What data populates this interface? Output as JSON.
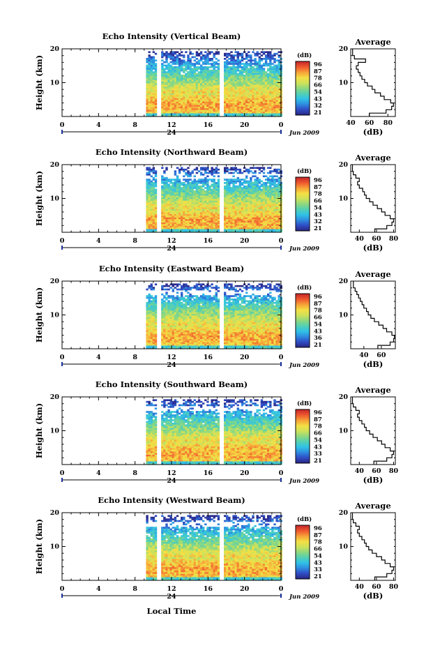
{
  "figure": {
    "x_axis_title": "Local Time",
    "x_ticks": [
      "0",
      "4",
      "8",
      "12",
      "16",
      "20",
      "0"
    ],
    "day_label": "24",
    "date_label": "Jun 2009",
    "y_axis_title": "Height (km)",
    "y_ticks": [
      "20",
      "10"
    ],
    "colorbar_unit": "(dB)",
    "avg_title": "Average",
    "avg_x_title": "(dB)"
  },
  "colors": {
    "scale": [
      "#2a2a8a",
      "#3050c8",
      "#2e8fe0",
      "#31c3e6",
      "#55d0b0",
      "#8fd87e",
      "#cfe25a",
      "#f4df44",
      "#f7a338",
      "#f05a2e",
      "#c82a2a"
    ]
  },
  "chart_data": [
    {
      "type": "heatmap",
      "title": "Echo Intensity (Vertical Beam)",
      "ylabel": "Height (km)",
      "xlabel": "Local Time",
      "xlim": [
        0,
        24
      ],
      "ylim": [
        0,
        20
      ],
      "data_start_hour": 9.2,
      "gaps_hours": [
        10.4,
        17.4
      ],
      "colorbar_ticks": [
        "96",
        "87",
        "78",
        "66",
        "54",
        "43",
        "32",
        "21"
      ],
      "avg_xticks": [
        "40",
        "60",
        "80"
      ],
      "avg_xlim": [
        40,
        88
      ],
      "avg_profile": [
        {
          "h": 1,
          "db": 60
        },
        {
          "h": 2,
          "db": 78
        },
        {
          "h": 3,
          "db": 84
        },
        {
          "h": 4,
          "db": 86
        },
        {
          "h": 5,
          "db": 83
        },
        {
          "h": 6,
          "db": 76
        },
        {
          "h": 7,
          "db": 72
        },
        {
          "h": 8,
          "db": 66
        },
        {
          "h": 9,
          "db": 63
        },
        {
          "h": 10,
          "db": 58
        },
        {
          "h": 11,
          "db": 55
        },
        {
          "h": 12,
          "db": 52
        },
        {
          "h": 13,
          "db": 50
        },
        {
          "h": 14,
          "db": 48
        },
        {
          "h": 15,
          "db": 46
        },
        {
          "h": 16,
          "db": 48
        },
        {
          "h": 17,
          "db": 56
        },
        {
          "h": 18,
          "db": 44
        },
        {
          "h": 19,
          "db": 42
        },
        {
          "h": 20,
          "db": 42
        }
      ]
    },
    {
      "type": "heatmap",
      "title": "Echo Intensity (Northward Beam)",
      "ylabel": "Height (km)",
      "xlabel": "Local Time",
      "xlim": [
        0,
        24
      ],
      "ylim": [
        0,
        20
      ],
      "data_start_hour": 9.2,
      "gaps_hours": [
        10.4,
        17.4
      ],
      "colorbar_ticks": [
        "96",
        "87",
        "78",
        "66",
        "54",
        "43",
        "32",
        "21"
      ],
      "avg_xticks": [
        "40",
        "60",
        "80"
      ],
      "avg_xlim": [
        30,
        82
      ],
      "avg_profile": [
        {
          "h": 1,
          "db": 58
        },
        {
          "h": 2,
          "db": 72
        },
        {
          "h": 3,
          "db": 78
        },
        {
          "h": 4,
          "db": 80
        },
        {
          "h": 5,
          "db": 76
        },
        {
          "h": 6,
          "db": 70
        },
        {
          "h": 7,
          "db": 66
        },
        {
          "h": 8,
          "db": 61
        },
        {
          "h": 9,
          "db": 56
        },
        {
          "h": 10,
          "db": 52
        },
        {
          "h": 11,
          "db": 48
        },
        {
          "h": 12,
          "db": 46
        },
        {
          "h": 13,
          "db": 44
        },
        {
          "h": 14,
          "db": 40
        },
        {
          "h": 15,
          "db": 38
        },
        {
          "h": 16,
          "db": 40
        },
        {
          "h": 17,
          "db": 36
        },
        {
          "h": 18,
          "db": 33
        },
        {
          "h": 19,
          "db": 32
        },
        {
          "h": 20,
          "db": 32
        }
      ]
    },
    {
      "type": "heatmap",
      "title": "Echo Intensity (Eastward Beam)",
      "ylabel": "Height (km)",
      "xlabel": "Local Time",
      "xlim": [
        0,
        24
      ],
      "ylim": [
        0,
        20
      ],
      "data_start_hour": 9.2,
      "gaps_hours": [
        10.4,
        17.4
      ],
      "colorbar_ticks": [
        "96",
        "87",
        "78",
        "66",
        "54",
        "43",
        "36",
        "21"
      ],
      "avg_xticks": [
        "40",
        "60"
      ],
      "avg_xlim": [
        25,
        76
      ],
      "avg_profile": [
        {
          "h": 1,
          "db": 56
        },
        {
          "h": 2,
          "db": 70
        },
        {
          "h": 3,
          "db": 74
        },
        {
          "h": 4,
          "db": 75
        },
        {
          "h": 5,
          "db": 72
        },
        {
          "h": 6,
          "db": 66
        },
        {
          "h": 7,
          "db": 62
        },
        {
          "h": 8,
          "db": 57
        },
        {
          "h": 9,
          "db": 52
        },
        {
          "h": 10,
          "db": 48
        },
        {
          "h": 11,
          "db": 45
        },
        {
          "h": 12,
          "db": 43
        },
        {
          "h": 13,
          "db": 40
        },
        {
          "h": 14,
          "db": 38
        },
        {
          "h": 15,
          "db": 36
        },
        {
          "h": 16,
          "db": 34
        },
        {
          "h": 17,
          "db": 32
        },
        {
          "h": 18,
          "db": 30
        },
        {
          "h": 19,
          "db": 28
        },
        {
          "h": 20,
          "db": 28
        }
      ]
    },
    {
      "type": "heatmap",
      "title": "Echo Intensity (Southward Beam)",
      "ylabel": "Height (km)",
      "xlabel": "Local Time",
      "xlim": [
        0,
        24
      ],
      "ylim": [
        0,
        20
      ],
      "data_start_hour": 9.2,
      "gaps_hours": [
        10.4,
        17.4
      ],
      "colorbar_ticks": [
        "96",
        "87",
        "78",
        "66",
        "54",
        "43",
        "33",
        "21"
      ],
      "avg_xticks": [
        "40",
        "60",
        "80"
      ],
      "avg_xlim": [
        30,
        82
      ],
      "avg_profile": [
        {
          "h": 1,
          "db": 57
        },
        {
          "h": 2,
          "db": 72
        },
        {
          "h": 3,
          "db": 78
        },
        {
          "h": 4,
          "db": 80
        },
        {
          "h": 5,
          "db": 76
        },
        {
          "h": 6,
          "db": 70
        },
        {
          "h": 7,
          "db": 66
        },
        {
          "h": 8,
          "db": 61
        },
        {
          "h": 9,
          "db": 56
        },
        {
          "h": 10,
          "db": 52
        },
        {
          "h": 11,
          "db": 48
        },
        {
          "h": 12,
          "db": 46
        },
        {
          "h": 13,
          "db": 43
        },
        {
          "h": 14,
          "db": 40
        },
        {
          "h": 15,
          "db": 38
        },
        {
          "h": 16,
          "db": 40
        },
        {
          "h": 17,
          "db": 36
        },
        {
          "h": 18,
          "db": 33
        },
        {
          "h": 19,
          "db": 32
        },
        {
          "h": 20,
          "db": 32
        }
      ]
    },
    {
      "type": "heatmap",
      "title": "Echo Intensity (Westward Beam)",
      "ylabel": "Height (km)",
      "xlabel": "Local Time",
      "xlim": [
        0,
        24
      ],
      "ylim": [
        0,
        20
      ],
      "data_start_hour": 9.2,
      "gaps_hours": [
        10.4,
        17.4
      ],
      "colorbar_ticks": [
        "96",
        "87",
        "78",
        "66",
        "54",
        "43",
        "33",
        "21"
      ],
      "avg_xticks": [
        "40",
        "60",
        "80"
      ],
      "avg_xlim": [
        30,
        82
      ],
      "avg_profile": [
        {
          "h": 1,
          "db": 58
        },
        {
          "h": 2,
          "db": 72
        },
        {
          "h": 3,
          "db": 78
        },
        {
          "h": 4,
          "db": 80
        },
        {
          "h": 5,
          "db": 76
        },
        {
          "h": 6,
          "db": 70
        },
        {
          "h": 7,
          "db": 66
        },
        {
          "h": 8,
          "db": 60
        },
        {
          "h": 9,
          "db": 55
        },
        {
          "h": 10,
          "db": 51
        },
        {
          "h": 11,
          "db": 48
        },
        {
          "h": 12,
          "db": 46
        },
        {
          "h": 13,
          "db": 43
        },
        {
          "h": 14,
          "db": 40
        },
        {
          "h": 15,
          "db": 38
        },
        {
          "h": 16,
          "db": 40
        },
        {
          "h": 17,
          "db": 36
        },
        {
          "h": 18,
          "db": 33
        },
        {
          "h": 19,
          "db": 32
        },
        {
          "h": 20,
          "db": 32
        }
      ]
    }
  ]
}
